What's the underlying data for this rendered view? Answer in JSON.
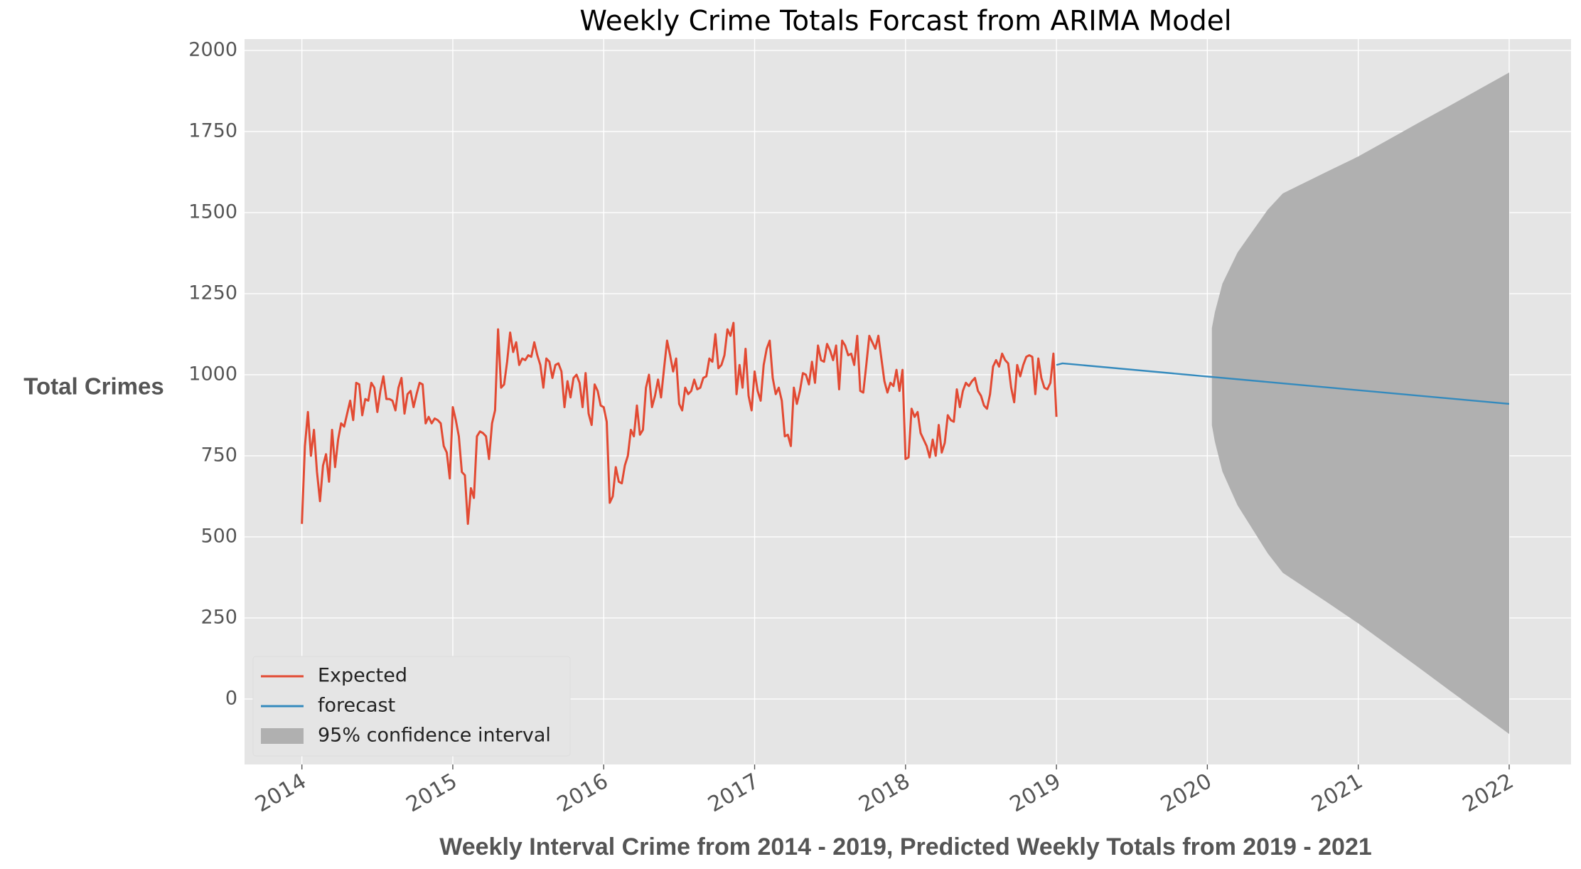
{
  "chart_data": {
    "type": "line",
    "title": "Weekly Crime Totals Forcast from ARIMA Model",
    "x_label": "Weekly Interval Crime from 2014 - 2019, Predicted Weekly Totals from 2019 - 2021",
    "y_label": "Total Crimes",
    "xlim": [
      2013.62,
      2022.41
    ],
    "xticks": [
      2014,
      2015,
      2016,
      2017,
      2018,
      2019,
      2020,
      2021,
      2022
    ],
    "ylim": [
      -202,
      2035
    ],
    "yticks": [
      0,
      250,
      500,
      750,
      1000,
      1250,
      1500,
      1750,
      2000
    ],
    "grid": true,
    "legend": "lower left",
    "series": [
      {
        "name": "Expected",
        "color": "#e24a33",
        "x": [
          2014,
          2014.02,
          2014.04,
          2014.06,
          2014.08,
          2014.1,
          2014.12,
          2014.14,
          2014.16,
          2014.18,
          2014.2,
          2014.22,
          2014.24,
          2014.26,
          2014.28,
          2014.3,
          2014.32,
          2014.34,
          2014.36,
          2014.38,
          2014.4,
          2014.42,
          2014.44,
          2014.46,
          2014.48,
          2014.5,
          2014.52,
          2014.54,
          2014.56,
          2014.58,
          2014.6,
          2014.62,
          2014.64,
          2014.66,
          2014.68,
          2014.7,
          2014.72,
          2014.74,
          2014.76,
          2014.78,
          2014.8,
          2014.82,
          2014.84,
          2014.86,
          2014.88,
          2014.9,
          2014.92,
          2014.94,
          2014.96,
          2014.98,
          2015,
          2015.02,
          2015.04,
          2015.06,
          2015.08,
          2015.1,
          2015.12,
          2015.14,
          2015.16,
          2015.18,
          2015.2,
          2015.22,
          2015.24,
          2015.26,
          2015.28,
          2015.3,
          2015.32,
          2015.34,
          2015.36,
          2015.38,
          2015.4,
          2015.42,
          2015.44,
          2015.46,
          2015.48,
          2015.5,
          2015.52,
          2015.54,
          2015.56,
          2015.58,
          2015.6,
          2015.62,
          2015.64,
          2015.66,
          2015.68,
          2015.7,
          2015.72,
          2015.74,
          2015.76,
          2015.78,
          2015.8,
          2015.82,
          2015.84,
          2015.86,
          2015.88,
          2015.9,
          2015.92,
          2015.94,
          2015.96,
          2015.98,
          2016,
          2016.02,
          2016.04,
          2016.06,
          2016.08,
          2016.1,
          2016.12,
          2016.14,
          2016.16,
          2016.18,
          2016.2,
          2016.22,
          2016.24,
          2016.26,
          2016.28,
          2016.3,
          2016.32,
          2016.34,
          2016.36,
          2016.38,
          2016.4,
          2016.42,
          2016.44,
          2016.46,
          2016.48,
          2016.5,
          2016.52,
          2016.54,
          2016.56,
          2016.58,
          2016.6,
          2016.62,
          2016.64,
          2016.66,
          2016.68,
          2016.7,
          2016.72,
          2016.74,
          2016.76,
          2016.78,
          2016.8,
          2016.82,
          2016.84,
          2016.86,
          2016.88,
          2016.9,
          2016.92,
          2016.94,
          2016.96,
          2016.98,
          2017,
          2017.02,
          2017.04,
          2017.06,
          2017.08,
          2017.1,
          2017.12,
          2017.14,
          2017.16,
          2017.18,
          2017.2,
          2017.22,
          2017.24,
          2017.26,
          2017.28,
          2017.3,
          2017.32,
          2017.34,
          2017.36,
          2017.38,
          2017.4,
          2017.42,
          2017.44,
          2017.46,
          2017.48,
          2017.5,
          2017.52,
          2017.54,
          2017.56,
          2017.58,
          2017.6,
          2017.62,
          2017.64,
          2017.66,
          2017.68,
          2017.7,
          2017.72,
          2017.74,
          2017.76,
          2017.78,
          2017.8,
          2017.82,
          2017.84,
          2017.86,
          2017.88,
          2017.9,
          2017.92,
          2017.94,
          2017.96,
          2017.98,
          2018,
          2018.02,
          2018.04,
          2018.06,
          2018.08,
          2018.1,
          2018.12,
          2018.14,
          2018.16,
          2018.18,
          2018.2,
          2018.22,
          2018.24,
          2018.26,
          2018.28,
          2018.3,
          2018.32,
          2018.34,
          2018.36,
          2018.38,
          2018.4,
          2018.42,
          2018.44,
          2018.46,
          2018.48,
          2018.5,
          2018.52,
          2018.54,
          2018.56,
          2018.58,
          2018.6,
          2018.62,
          2018.64,
          2018.66,
          2018.68,
          2018.7,
          2018.72,
          2018.74,
          2018.76,
          2018.78,
          2018.8,
          2018.82,
          2018.84,
          2018.86,
          2018.88,
          2018.9,
          2018.92,
          2018.94,
          2018.96,
          2018.98,
          2019
        ],
        "values": [
          540,
          780,
          885,
          750,
          830,
          700,
          610,
          720,
          755,
          670,
          830,
          715,
          800,
          850,
          840,
          880,
          920,
          860,
          975,
          970,
          875,
          925,
          920,
          975,
          960,
          885,
          950,
          995,
          925,
          925,
          920,
          890,
          960,
          990,
          880,
          940,
          950,
          900,
          940,
          975,
          970,
          850,
          870,
          850,
          865,
          860,
          850,
          780,
          760,
          680,
          900,
          860,
          810,
          700,
          690,
          540,
          650,
          620,
          810,
          825,
          820,
          810,
          740,
          850,
          890,
          1140,
          960,
          970,
          1040,
          1130,
          1070,
          1100,
          1030,
          1050,
          1045,
          1060,
          1055,
          1100,
          1060,
          1030,
          960,
          1050,
          1040,
          990,
          1030,
          1035,
          1010,
          900,
          980,
          930,
          990,
          1000,
          975,
          900,
          1005,
          880,
          845,
          970,
          950,
          905,
          900,
          855,
          605,
          625,
          715,
          670,
          665,
          720,
          750,
          830,
          810,
          905,
          815,
          830,
          960,
          1000,
          900,
          935,
          985,
          930,
          1020,
          1105,
          1060,
          1010,
          1050,
          910,
          890,
          960,
          940,
          950,
          985,
          955,
          960,
          990,
          995,
          1050,
          1040,
          1125,
          1020,
          1030,
          1060,
          1140,
          1120,
          1160,
          940,
          1030,
          960,
          1080,
          935,
          890,
          1010,
          950,
          920,
          1030,
          1080,
          1105,
          990,
          940,
          960,
          920,
          810,
          815,
          780,
          960,
          910,
          950,
          1005,
          1000,
          970,
          1040,
          975,
          1090,
          1045,
          1040,
          1095,
          1075,
          1045,
          1090,
          955,
          1105,
          1090,
          1060,
          1065,
          1030,
          1120,
          950,
          945,
          1030,
          1120,
          1100,
          1080,
          1120,
          1050,
          980,
          945,
          975,
          965,
          1015,
          950,
          1015,
          740,
          745,
          895,
          870,
          885,
          820,
          800,
          780,
          745,
          800,
          750,
          845,
          760,
          790,
          875,
          860,
          855,
          955,
          900,
          950,
          975,
          965,
          980,
          990,
          950,
          935,
          905,
          895,
          940,
          1025,
          1045,
          1025,
          1065,
          1045,
          1035,
          960,
          915,
          1030,
          995,
          1030,
          1055,
          1060,
          1055,
          940,
          1050,
          990,
          960,
          955,
          975,
          1065,
          870
        ]
      },
      {
        "name": "forecast",
        "color": "#348abd",
        "x": [
          2019,
          2019.04,
          2022
        ],
        "values": [
          1030,
          1035,
          910
        ]
      }
    ],
    "band": {
      "name": "95% confidence interval",
      "color": "#b0b0b0",
      "x": [
        2020.03,
        2020.05,
        2020.1,
        2020.2,
        2020.3,
        2020.4,
        2020.5,
        2020.6,
        2020.8,
        2021,
        2021.2,
        2021.4,
        2021.6,
        2021.8,
        2022
      ],
      "lower": [
        844,
        793,
        701,
        597,
        523,
        449,
        389,
        358,
        296,
        233,
        165,
        97,
        28,
        -40,
        -108
      ],
      "upper": [
        1144,
        1193,
        1281,
        1377,
        1443,
        1509,
        1559,
        1582,
        1628,
        1673,
        1725,
        1777,
        1828,
        1880,
        1932
      ]
    }
  }
}
